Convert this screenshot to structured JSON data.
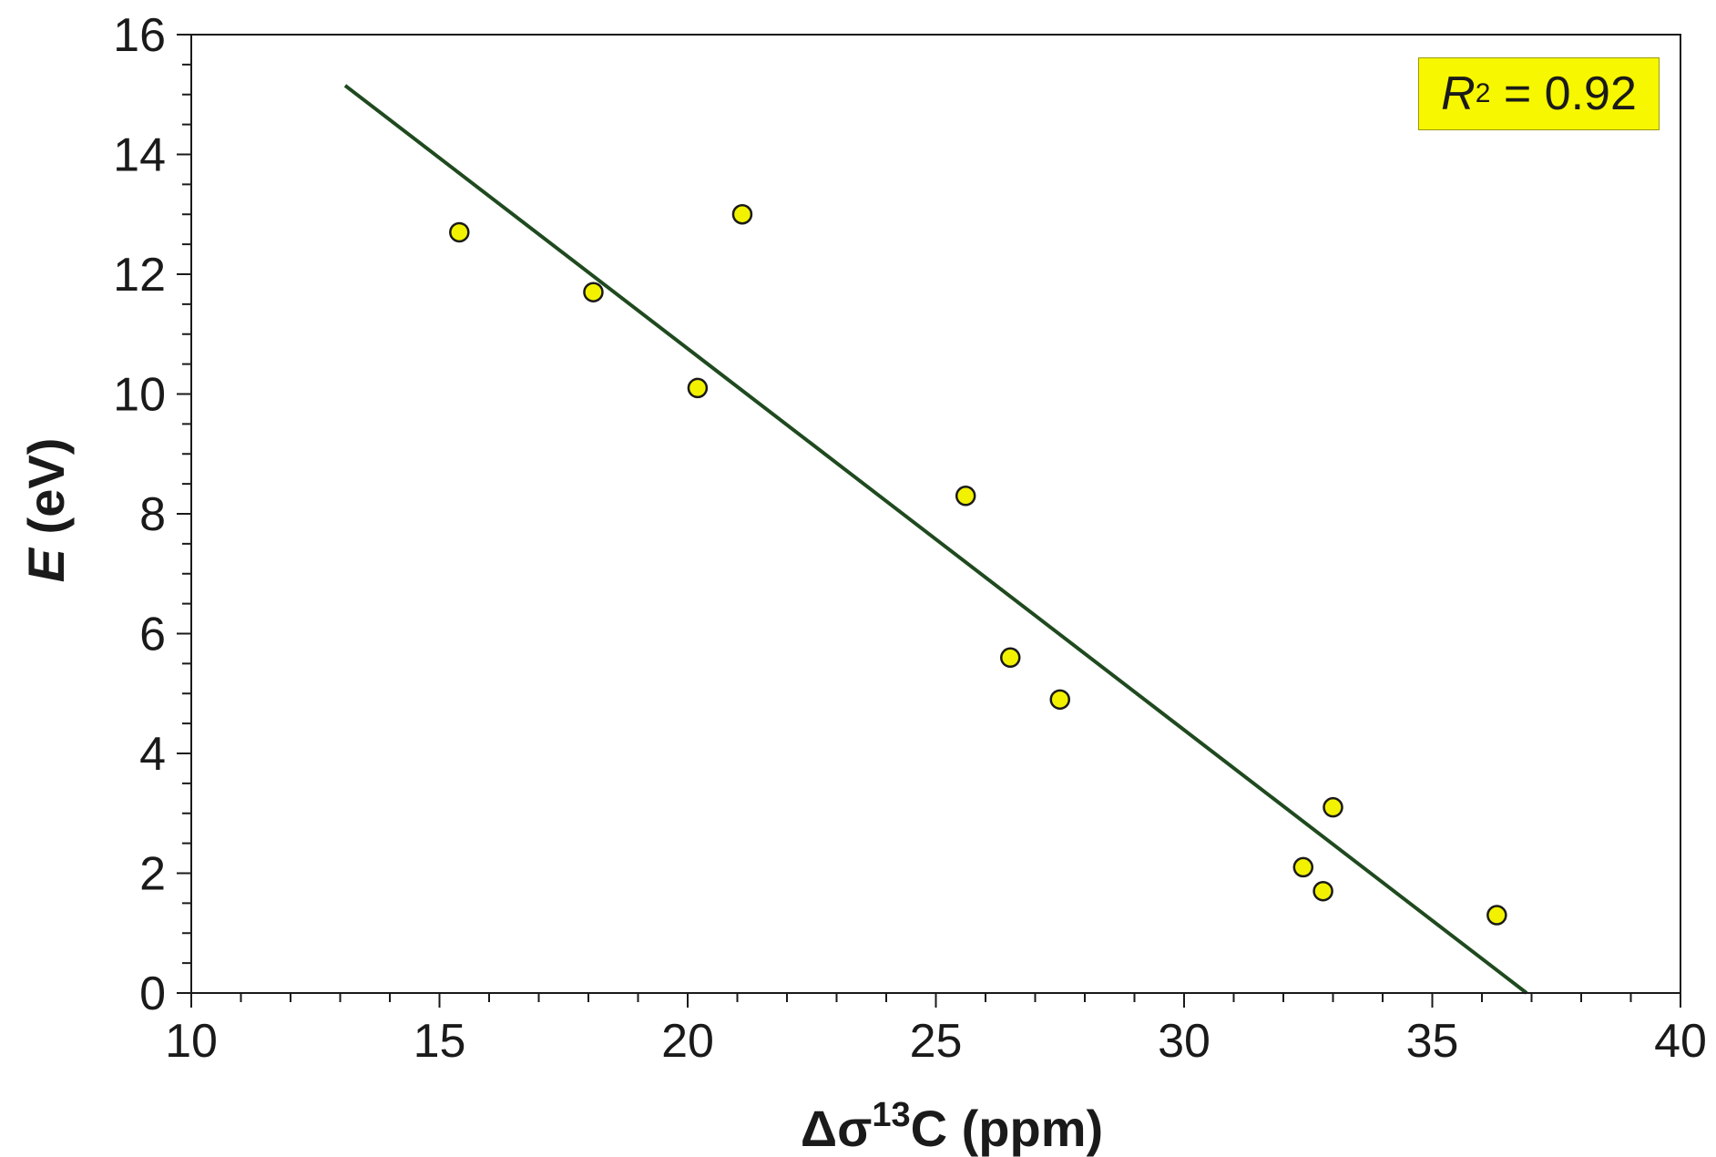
{
  "chart_data": {
    "type": "scatter",
    "title": "",
    "xlabel": {
      "prefix": "Δσ",
      "sup": "13",
      "suffix": "C (ppm)"
    },
    "ylabel": {
      "italic": "E",
      "rest": " (eV)"
    },
    "xlim": [
      10,
      40
    ],
    "ylim": [
      0,
      16
    ],
    "xticks": [
      10,
      15,
      20,
      25,
      30,
      35,
      40
    ],
    "yticks": [
      0,
      2,
      4,
      6,
      8,
      10,
      12,
      14,
      16
    ],
    "points": [
      {
        "x": 15.4,
        "y": 12.7
      },
      {
        "x": 18.1,
        "y": 11.7
      },
      {
        "x": 20.2,
        "y": 10.1
      },
      {
        "x": 21.1,
        "y": 13.0
      },
      {
        "x": 25.6,
        "y": 8.3
      },
      {
        "x": 26.5,
        "y": 5.6
      },
      {
        "x": 27.5,
        "y": 4.9
      },
      {
        "x": 32.4,
        "y": 2.1
      },
      {
        "x": 32.8,
        "y": 1.7
      },
      {
        "x": 33.0,
        "y": 3.1
      },
      {
        "x": 36.3,
        "y": 1.3
      }
    ],
    "fit_line": {
      "x": [
        13.1,
        36.9
      ],
      "y": [
        15.15,
        0.0
      ]
    },
    "annotation": {
      "italic": "R",
      "sup": "2",
      "rest": " = 0.92"
    },
    "grid": false,
    "colors": {
      "marker_fill": "#f2f200",
      "marker_edge": "#1a1a1a",
      "line": "#1f4a1f",
      "annotation_bg": "#f7f700"
    }
  }
}
